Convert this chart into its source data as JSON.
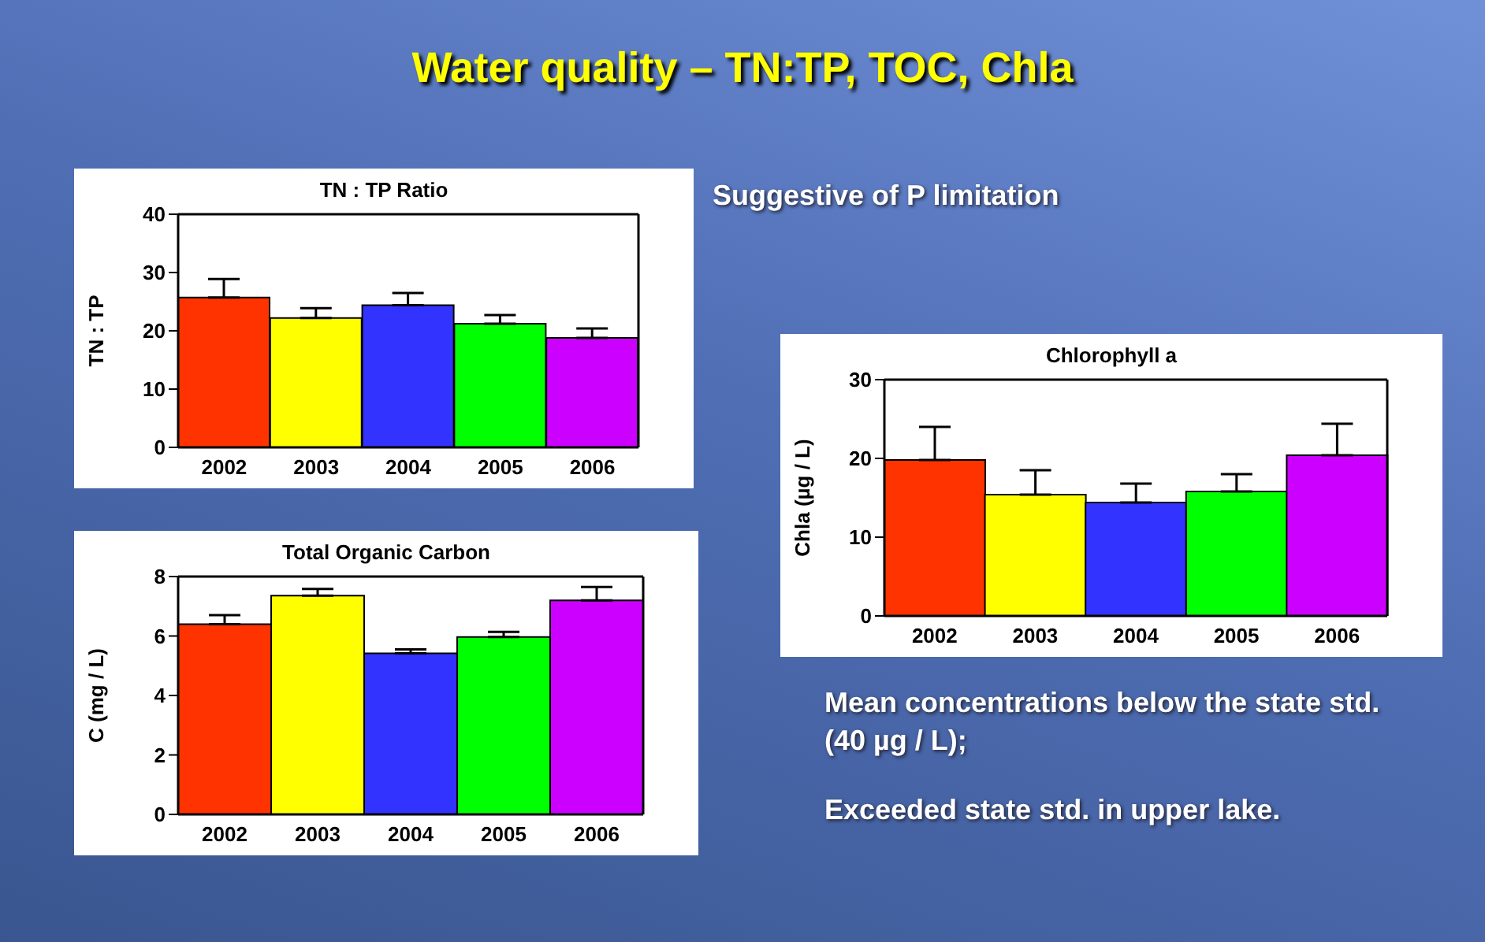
{
  "chart_data": [
    {
      "type": "other",
      "title": "Water quality – TN:TP, TOC, Chla"
    },
    {
      "type": "bar",
      "title": "TN : TP Ratio",
      "ylabel": "TN : TP",
      "categories": [
        "2002",
        "2003",
        "2004",
        "2005",
        "2006"
      ],
      "values": [
        25.7,
        22.2,
        24.4,
        21.2,
        18.8
      ],
      "errors": [
        [
          25.7,
          28.9
        ],
        [
          22.2,
          23.9
        ],
        [
          24.4,
          26.5
        ],
        [
          21.2,
          22.7
        ],
        [
          18.8,
          20.4
        ]
      ],
      "colors": [
        "#ff3300",
        "#ffff00",
        "#3333ff",
        "#00ff00",
        "#cc00ff"
      ],
      "ylim": [
        0,
        40
      ],
      "yticks": [
        0,
        10,
        20,
        30,
        40
      ],
      "grid": false,
      "legend": false,
      "annotations": [
        "Suggestive of P limitation"
      ]
    },
    {
      "type": "bar",
      "title": "Chlorophyll a",
      "ylabel": "Chla (µg / L)",
      "categories": [
        "2002",
        "2003",
        "2004",
        "2005",
        "2006"
      ],
      "values": [
        19.8,
        15.4,
        14.4,
        15.8,
        20.4
      ],
      "errors": [
        [
          19.8,
          24.0
        ],
        [
          15.4,
          18.5
        ],
        [
          14.4,
          16.8
        ],
        [
          15.8,
          18.0
        ],
        [
          20.4,
          24.4
        ]
      ],
      "colors": [
        "#ff3300",
        "#ffff00",
        "#3333ff",
        "#00ff00",
        "#cc00ff"
      ],
      "ylim": [
        0,
        30
      ],
      "yticks": [
        0,
        10,
        20,
        30
      ],
      "grid": false,
      "legend": false,
      "annotations": [
        "Mean concentrations below the state std. (40 µg / L);",
        "Exceeded state std. in upper lake."
      ]
    },
    {
      "type": "bar",
      "title": "Total Organic Carbon",
      "ylabel": "C (mg / L)",
      "categories": [
        "2002",
        "2003",
        "2004",
        "2005",
        "2006"
      ],
      "values": [
        6.4,
        7.36,
        5.42,
        5.97,
        7.2
      ],
      "errors": [
        [
          6.4,
          6.7
        ],
        [
          7.36,
          7.58
        ],
        [
          5.42,
          5.55
        ],
        [
          5.97,
          6.14
        ],
        [
          7.2,
          7.65
        ]
      ],
      "colors": [
        "#ff3300",
        "#ffff00",
        "#3333ff",
        "#00ff00",
        "#cc00ff"
      ],
      "ylim": [
        0,
        8
      ],
      "yticks": [
        0,
        2,
        4,
        6,
        8
      ],
      "grid": false,
      "legend": false
    }
  ]
}
